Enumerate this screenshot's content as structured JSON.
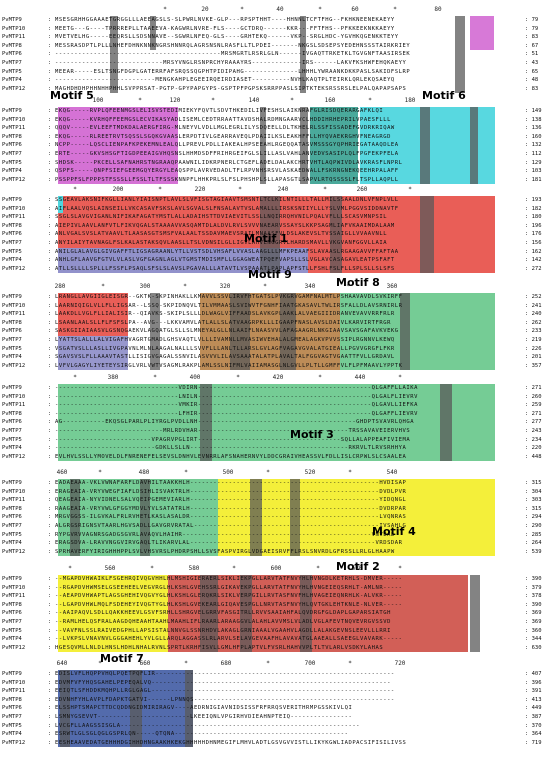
{
  "proteins": [
    "PvMTP9",
    "PvMTP10",
    "PvMTP11",
    "PvMTP8",
    "PvMTP6",
    "PvMTP7",
    "PvMTP5",
    "PvMTP4",
    "PvMTP12"
  ],
  "colors": {
    "motif5": "#d36ad3",
    "motif6": "#4fd6de",
    "motif1": "#e8554e",
    "motif9": "#8c8cc8",
    "motif8": "#b9864e",
    "green": "#66c78a",
    "teal": "#2a9a8a",
    "yellow": "#f4ef3a",
    "motif2": "#d0564e",
    "motif7": "#4a63a8",
    "dark": "#555555",
    "grey": "#9a9a9a"
  },
  "motifs": {
    "m5": "Motif 5",
    "m6": "Motif 6",
    "m1": "Motif 1",
    "m9": "Motif 9",
    "m8": "Motif 8",
    "m3": "Motif 3",
    "m4": "Motif 4",
    "m2": "Motif 2",
    "m7": "Motif 7"
  },
  "blocks": [
    {
      "ruler": [
        "*",
        "20",
        "*",
        "40",
        "*",
        "60",
        "*",
        "80"
      ],
      "seqs": [
        "MSESGRHHGGAAAETGRGGLLLAEEAGSLS-SLPWRLNVKE-GLP---RPSPTHHT----HHNNLTCFTFHG--FKHKNEENEKAEYY",
        "MEETG---G----TPRRREPLLTAAEEVA-KAGWRLNVRE-FLS----GCTDRQ------KKR---FFTFHS--PFKKEEKNKKAEYY",
        "MVETVELHG-----EEQRSLLSDSNNAVE--SGWRLNFEQ-GLS----GRHTEKQ------VKP--SRGLHDC-YGVHKQGENKKTEYY",
        "MESSRASDPTLPLLLNHEFDHNKNNKNGRSHNNRQLAGRSNSNLRASFLLTLPDEI-------NKGSLSDSEPSYEDEHNSSSTAIRKRIEY",
        "-------------------------------------------MRSMGRTLRSRLGLN------IVGAQTTRKETKLTGVGNFTAASIRSEK",
        "----------------------------MRSYVNGLRSNPRCHYRAAAYRS-------------IRS------LAKVFKSHWFEHQKAEYY",
        "MEEAR-----ESLTSNGFDGPLGATERRFAFSRQSSQGPHTPIDIPAHG--------------LHHHLYWRAANKDKKPASLSAKIDFSLRP",
        "--------------------------MENGKAHPLEGEEIRQEIRDIASET----------NVHLKAQTPLTEIRKLQRLEKQSAEYQ",
        "MAGHDHDHPHHNHHPHHLSVPPRSAT-PGTP-GPYPAPGYPS-GSPTPFPGPSKSRRPPASLSIPTKTEKSRSSRSLELPALQAPAPSAPS"
      ],
      "ends": [
        "79",
        "79",
        "83",
        "67",
        "51",
        "43",
        "65",
        "48",
        "83"
      ]
    },
    {
      "ruler": [
        "100",
        "*",
        "120",
        "*",
        "140",
        "*",
        "160",
        "*",
        "180"
      ],
      "seqs": [
        "EKQG-----RVPLQFEENMGSLELISVSTEDIMIEKYFQVTLSDVTHKEDILIVFESHSLAIKNRAFGLRISDQERARGAFKLQI",
        "EKQG-----KVRHQFFEEMGSLECVIKASYADLISEMLCEDTRRAATTAVDSHALRDMNGAARVCLHDDIHRHEPRILVPAESFLLL",
        "QQQV-----EVLEEFTMDKDALAERGFIRG-MLNEYVLVDLLMGLEGRLILYSDQEELLDLTKHELRLSSFISSADEFGVDRKRIQAW",
        "EKQG-----RLREETRVTSQSSLSGQKGVAASLERPDTIVLGEARRAVEQLPDAIILKSLEAKHFFLLHYQVAEKRGHVFNEAGRGD",
        "NCPP-----LQSCLIENPAFKPEKEMNLEALQLLPREVLPDLLIAKEALHPSEEAHLRGEQQATASVMSSSGYQPHRIEGATAAQDLEA",
        "ERTE-----GKVSHSGFTIGDPEEAIGVHQSNSLHHMDSDFFRIHRGEIFGLSLILLASLVAHLANVEDVSASIPLQLFPGFEKPFELA",
        "SHDSK-----PKCELLSAFNAHRSTNGRAAQPAAWNILIDKRPNERLCTGEFLADELDALAKCHRTVHTLAQPWIVDLAVKRASFLNPRL",
        "QSPFS-----QNPFSIEFGEEMGQYERGYLEAQSPPLAVRVEDADLTFLRPVNHSRSVLASKAEDWALLFSKRNGNEKQEEHRPALAFF",
        "PSSPPFSLFPPPSTFSSSLLFSSLTLTFSSSKNNPFLHHKPRLSLFSLPHSHPLSLLAPASGTLSAPVLRTQSSSSLFLTSPLLAQPLL"
      ],
      "ends": [
        "149",
        "138",
        "136",
        "160",
        "132",
        "112",
        "129",
        "103",
        "181"
      ]
    },
    {
      "ruler": [
        "*",
        "200",
        "*",
        "220",
        "*",
        "240",
        "*",
        "260",
        "*"
      ],
      "seqs": [
        "SSGEAVLAKSNIFKGLLIANLYIAISNPTLAVLSLVFISGTAGIAAVTSMSNTLTCLKILNTILLLTALLMILSSAALDNLVFNPLVLL",
        "AIFLAALVQSLAINSEILLVKCASAVFSKSLAVLSGVALSLFNSALAVTVSLAMALLLIRSKSNIIYLLLYSLVMLPGGVSIDDNAVTF",
        "SSGLSLAVGVIGANLNIFIKAFAGATYMSTLALLADAIHSTTDVIAEVITLSSLLNQIRRQHVNILPQALVFLLLSCASVMNPSIL",
        "AIEPIVLAAVLANFVTLFIKVQGALSTAAAAVVASQAMTDLALDVLRVLSVVVNAEARVSSAYSLKKPSAGMLIAFVKAAIMDALAAM",
        "ANLVGALSVSLATVAAVLTLAASASGTSMSFVALAALTSSDAVMAEVSRAILMNAASFVLDSLAKEVSLTVSSAIGLLVVAAVNLL",
        "ANYILAIYTAVNAGLFSLKALASTAKSQVLAASLLTSLVDNSILGLLIGVLAHVLNGGRVLHARDSMAVLLVKGVANFGGVLLAIA",
        "ANILGLALAVGLGIVGAFFTLIGSAGRAANLYTLLVSTSDLVHSAFLVVASLAAGLLLMFKPEAAFSLAVAASLRGAAGAVVFFAFTAA",
        "ANHLGFLAAVGFGTVLVLASLVGFGAGNLAGLVTGMSTMDISMFLLGGAGWEATPQEFVAPSLLSLVGLAVCASAGAVLEATPSFAFT",
        "ATLLSLLLLSPLLLFSSFLPSAQLSFSLSLAVSLPGAVALLLATAVTLVSPAAATLPAPLAPFSTLLFSHLFSLFLLSPLSLLSLSFS"
      ],
      "ends": [
        "193",
        "182",
        "180",
        "196",
        "176",
        "156",
        "162",
        "142",
        "272"
      ]
    },
    {
      "ruler": [
        "280",
        "*",
        "300",
        "*",
        "320",
        "*",
        "340",
        "*",
        "360"
      ],
      "seqs": [
        "LRANGLLAVGIIGLEISGR--GKTK-SKPINHAKLLKMAVVLSSVLIRVFHTGATSLPVKGRVGAMFNALMTLPSHAAVAVDLSVKIRFF",
        "LAARNIQIGLVLLFLLIGSAR--LSSQ-SKPIDNQVLTILVMMAASLSVIWVTFGNHFIAATGKASAVLTWLIRSFALLDLAVSRNIRLR",
        "LAAKDLLVGLFLLIALISIR--QIAVKS-SKIPLSLLLDLWAGLVIFFAADSLAVKGPLAAKLALVAEGIIIDRANVEVAVVRRFRLR",
        "LSAANLAALSLLFLFSFSLPA--AVG---LKKVAMVLATLALLSLATVAAGRPKLLLIGAAPFNASLAVSLDAIVLKARVIRTFRGR",
        "SASKGIIAIAASVLGSNQGAEKVLAGQATGLSLLSLMNEYALGLLNLAAIFLNAASVVLAFAGAAGRLNKGIAAVSAVSGAFAVKVEKG",
        "LYATTSLALLLALVIGAFHVAGRTGMADLGHSVAQTLVLLLIVAMNLLMVASIWVEHALALGMEALAGKVPVVSSIPLRGNNVLKEWQ",
        "VSGATVSLLLASLLIVGPAVNLMLNLAAGALNALLLSVVFLLLANLTLLARSLGVLAGFVAGAVGVALATGIEALLPGVVGRGFLFKR",
        "SGAVSVSLFLLAAAVTASTLLISIGVGAGALSSNVILASVVVLILAVSAAATALATPLAVALTALFGGVAGTVGAATTFVLLGRDAVL",
        "LVFVLGAGYLIYETEYSIRGLVRLVWTVSAGMLRAKPLAMLSSLNIFMLVAIIAMASGLNLGVLLPLTLLGMFFVLFLPFMAAVLYPPTK"
      ],
      "ends": [
        "252",
        "241",
        "240",
        "262",
        "233",
        "219",
        "226",
        "201",
        "357"
      ]
    },
    {
      "ruler": [
        "*",
        "380",
        "*",
        "400",
        "*",
        "420",
        "*",
        "440",
        "*"
      ],
      "seqs": [
        "--------------------------------VDIRN---------------------------------------------QLGAFFLLAIKA",
        "--------------------------------LNILN---------------------------------------------QLGALFLIEVRV",
        "--------------------------------VMKIR---------------------------------------------QLGAVLLIEFKA",
        "--------------------------------LFHIR---------------------------------------------QLGAFFLIEVRV",
        "AG-----------EKQSGLPARLPLIYRGLPVDLLNH-----------------------------------------GHDPTSVAVRLQHGA",
        "----------------------------MRLRDVHAR---------------------------------------TRSSAVAVEIERVHVS",
        "-------------------------VPAGRVPGLIRT-------------------------------------SQLLALAPPEAFIVIEMA",
        "--------------------------GDKLLSLLN-----------------------------------------RKRVLTLRVSRHHYA",
        "EVLHVLSSLLYMOVELDLFNRENEFELSEVSLDNHVLEVNRRLAFSNAHERNVYLDDCGRAIVHEASSVLFDLLISLCRPWLSLCSAALEA"
      ],
      "ends": [
        "271",
        "260",
        "259",
        "271",
        "277",
        "243",
        "234",
        "220",
        "448"
      ]
    },
    {
      "ruler": [
        "460",
        "*",
        "480",
        "*",
        "500",
        "*",
        "520",
        "*",
        "540"
      ],
      "seqs": [
        "EADAEAAA-VKLVWNAFARFLDAVHILTAAKKHLH-------------------------------------------------HVDISAP",
        "ERAGEAIA-VRYVWEGFIAFLDSIHLISVAKTRLH-------------------------------------------------DVDLPVR",
        "QEAGEAIA-NYVIDNELSALVQEIPGEMEVIARLH-------------------------------------------------YIDQNGL",
        "RAAGEAIA-VRYVWLGFGGYMDVLYVLSATATRLH-------------------------------------------------DVDRPAR",
        "MRGVGGSS-ILGVKALFRLRVHETLKASLASALDR-------------------------------------------------LVQNRAS",
        "ALGRGSRIGNSVTAARLHGVSADLLGAVGRVRATAL------------------------------------------------IVSAHLG",
        "RYPGVRVVAGNRSGADGSGVRLAVAQVLHAIHR-------------------------------------------------VNVEAL",
        "ERAGSDVA-LRAVVNGGVIRVGAQLTLIKARVLAL------------------------------------------------VRDSDAR",
        "SPRHAVERFYIRIGHHHPPLSVLVHSVRSLPHDRPSHLLSVSFASPVIRGLVDGAEISRVFFLRSLSNVRDLGFRSSLLRLGLHAAPW"
      ],
      "ends": [
        "315",
        "304",
        "303",
        "315",
        "294",
        "290",
        "285",
        "264",
        "539"
      ]
    },
    {
      "ruler": [
        "*",
        "560",
        "*",
        "580",
        "*",
        "600",
        "*",
        "620",
        "*"
      ],
      "seqs": [
        "--MGAPDVHWAIKLFSGEHRQIVQGVHHLHLMSHIGIERAERLSIKLIEKPGLLARVTATFNVYHLHVNGDLKETRHLS-DMVER-----",
        "--RGAPDVHWMSELGSEEHEELVEGVRGLHLKSHLGVEHSSRLGIKAVEKPGLLARVTATFNVYHLHVNGEIEQSRHLT-AMLNR-----",
        "--AEAPDVHWAPTLAGSGHEHIVQGVYGLHLKSHLGLERQKRLSIKLVERPGILLRVTASFNVFHLHVAGEIEQNRHLK-ALVKR-----",
        "--LGAPDVHWLMQLFSDEHEYIVQGTYGLHLKSHLGVEKEARLGIQAVESPGLLNRVTASFNVYHLQVTGKLEHTKNLE-NLVER-----",
        "--AAIPAQVLSDLLQAKKHEEVLGSVFSRHLLSHRGVELGRRVFASGITRLLRVVSAAIAHFALQVDRGFGLDAPLGAPARSIATGH",
        "--RAMLHELQSFRALAAGDQHEAAHTAAHLMAAHLIFLRAARLARAAGGVLALAHLAVVMSLVLADLVGLAFEVTNQVEVRGVSSVD",
        "--VAVFNLSSLRAIVEDGPHLLAPSISTALNNVGLSSNRHDVLAKAGLGRNIAAALVGAAHVLAGDLLALAKGEVNSLEEVLLLRRI",
        "--LVKPSLVNAVNVLGGGAHEHLYVLGLLARQLAGGASSLRLARVLSELAVGEVAAFHLAVAVATGLAAEALLSAEEGLVAVARK-----",
        "HGESQVMLLNLDLHNSLHDHLNHALRVNLSPRTLKRHFISVLLGMLHFPLAPTVLFVSRLHAHVVPLTLTVLARLVSDKYLAHAS"
      ],
      "ends": [
        "390",
        "379",
        "378",
        "390",
        "369",
        "369",
        "360",
        "344",
        "630"
      ]
    },
    {
      "ruler": [
        "640",
        "*",
        "660",
        "*",
        "680",
        "*",
        "700",
        "*",
        "720"
      ],
      "seqs": [
        "EDISLVFLHQPPVHQLPQETPQFLIR--------------------------------------------------------------",
        "EDVMFVFYHQSGAHELPEPEQALVQ--------------------------------------------------------------",
        "EEIQTLSFHDDKMQHPLLRGLGAGL---------------------------------------------------------------",
        "EDVNHFYHLAVPLFDAPKTGATVI------LPNNQS----------------------------------------------------",
        "ELSSHPTSMAPCTTDCQDDNGIDMIRIRAGV----AEDRNIGIAVNIDSISSFRFRRQSVERITHRMPGSSKIVLQI",
        "LSMNYGSEVVT------------------------LKEEIQNLVPGIRHVDIEAHNPTEIQ----------------",
        "LVCGFLLAAGSSISGLA--------------------------------------------------------------",
        "ESRWTLGLSGLQGLGSPRLQN-----QTQNA---------------------------------------------",
        "EESHEAAVEDATGEHHHDGIHHDHNGAAKHKEKGHHHHHDHNMEGIFLMHVLADTLGSVGVVISTLLIKYKGWLIADPACSIFISILIVSS"
      ],
      "ends": [
        "407",
        "396",
        "391",
        "413",
        "449",
        "387",
        "370",
        "364",
        "719"
      ]
    }
  ]
}
